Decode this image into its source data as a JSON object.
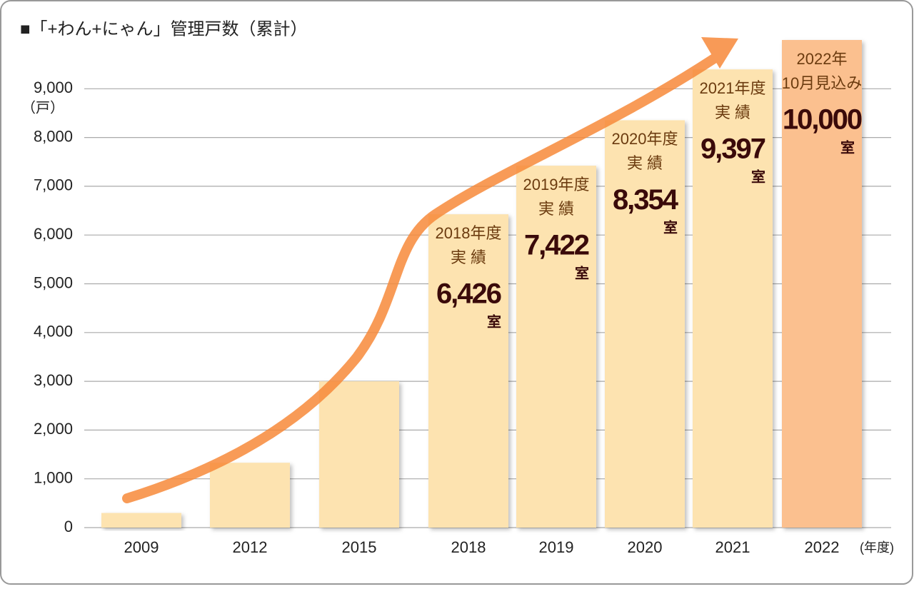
{
  "chart_data": {
    "type": "bar",
    "title": "■「+わん+にゃん」管理戸数（累計）",
    "y_unit": "（戸）",
    "x_unit": "(年度)",
    "categories": [
      "2009",
      "2012",
      "2015",
      "2018",
      "2019",
      "2020",
      "2021",
      "2022"
    ],
    "values": [
      300,
      1330,
      3000,
      6426,
      7422,
      8354,
      9397,
      10000
    ],
    "value_labels": [
      null,
      null,
      null,
      "6,426",
      "7,422",
      "8,354",
      "9,397",
      "10,000"
    ],
    "value_unit": "室",
    "notes": [
      null,
      null,
      null,
      [
        "2018年度",
        "実 績"
      ],
      [
        "2019年度",
        "実 績"
      ],
      [
        "2020年度",
        "実 績"
      ],
      [
        "2021年度",
        "実 績"
      ],
      [
        "2022年",
        "10月見込み"
      ]
    ],
    "colors": [
      "#fde3b0",
      "#fde3b0",
      "#fde3b0",
      "#fde3b0",
      "#fde3b0",
      "#fde3b0",
      "#fde3b0",
      "#fbc08f"
    ],
    "ylim": [
      0,
      10000
    ],
    "yticks": [
      0,
      {
        "value": 1000,
        "label": "1,000"
      },
      {
        "value": 2000,
        "label": "2,000"
      },
      {
        "value": 3000,
        "label": "3,000"
      },
      {
        "value": 4000,
        "label": "4,000"
      },
      {
        "value": 5000,
        "label": "5,000"
      },
      {
        "value": 6000,
        "label": "6,000"
      },
      {
        "value": 7000,
        "label": "7,000"
      },
      {
        "value": 8000,
        "label": "8,000"
      },
      {
        "value": 9000,
        "label": "9,000"
      }
    ],
    "grid": true
  }
}
